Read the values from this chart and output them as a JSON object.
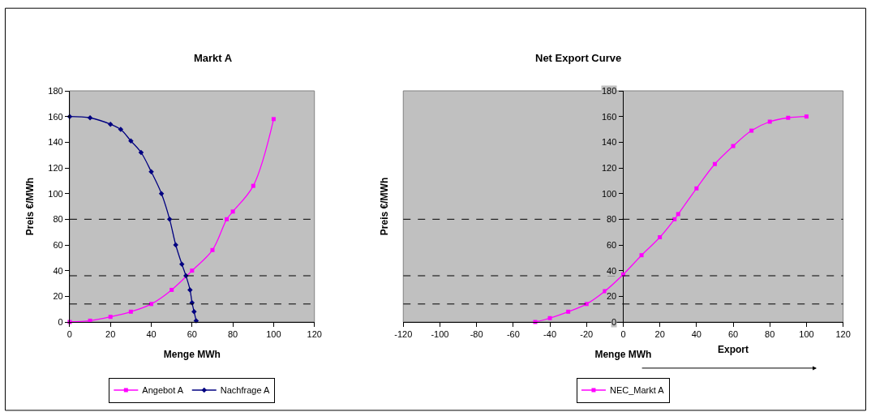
{
  "chart_data": [
    {
      "type": "line",
      "title": "Markt A",
      "xlabel": "Menge MWh",
      "ylabel": "Preis €/MWh",
      "xlim": [
        0,
        120
      ],
      "xticks": [
        0,
        20,
        40,
        60,
        80,
        100,
        120
      ],
      "ylim": [
        0,
        180
      ],
      "yticks": [
        0,
        20,
        40,
        60,
        80,
        100,
        120,
        140,
        160,
        180
      ],
      "legend": "bottom",
      "series": [
        {
          "name": "Angebot A",
          "color": "#ff00ff",
          "marker": "square",
          "x": [
            0,
            10,
            20,
            30,
            40,
            50,
            60,
            70,
            77,
            80,
            90,
            100
          ],
          "values": [
            0,
            1,
            4,
            8,
            14,
            25,
            40,
            56,
            80,
            86,
            106,
            158
          ]
        },
        {
          "name": "Nachfrage A",
          "color": "#000080",
          "marker": "diamond",
          "x": [
            0,
            10,
            20,
            25,
            30,
            35,
            40,
            45,
            49,
            52,
            55,
            57,
            59,
            60,
            61,
            62
          ],
          "values": [
            160,
            159,
            154,
            150,
            141,
            132,
            117,
            100,
            80,
            60,
            45,
            36,
            25,
            15,
            8,
            1
          ]
        }
      ],
      "ref_lines": [
        {
          "axis": "y",
          "value": 80,
          "color": "#000000",
          "line_style": "dashed"
        },
        {
          "axis": "y",
          "value": 36,
          "color": "#000000",
          "line_style": "dashed"
        },
        {
          "axis": "y",
          "value": 14,
          "color": "#000000",
          "line_style": "dashed"
        }
      ]
    },
    {
      "type": "line",
      "title": "Net Export Curve",
      "xlabel": "Menge MWh",
      "ylabel": "Preis €/MWh",
      "xlim": [
        -120,
        120
      ],
      "xticks": [
        -120,
        -100,
        -80,
        -60,
        -40,
        -20,
        0,
        20,
        40,
        60,
        80,
        100,
        120
      ],
      "ylim": [
        0,
        180
      ],
      "yticks": [
        0,
        20,
        40,
        60,
        80,
        100,
        120,
        140,
        160,
        180
      ],
      "legend": "bottom",
      "annotations": [
        "Export"
      ],
      "series": [
        {
          "name": "NEC_Markt A",
          "color": "#ff00ff",
          "marker": "square",
          "x": [
            -48,
            -40,
            -30,
            -20,
            -10,
            0,
            10,
            20,
            28,
            30,
            40,
            50,
            60,
            70,
            80,
            90,
            100
          ],
          "values": [
            0,
            3,
            8,
            14,
            24,
            37,
            52,
            66,
            80,
            84,
            104,
            123,
            137,
            149,
            156,
            159,
            160
          ]
        }
      ],
      "ref_lines": [
        {
          "axis": "y",
          "value": 80,
          "color": "#000000",
          "line_style": "dashed"
        },
        {
          "axis": "y",
          "value": 36,
          "color": "#000000",
          "line_style": "dashed"
        },
        {
          "axis": "y",
          "value": 14,
          "color": "#000000",
          "line_style": "dashed"
        }
      ]
    }
  ]
}
